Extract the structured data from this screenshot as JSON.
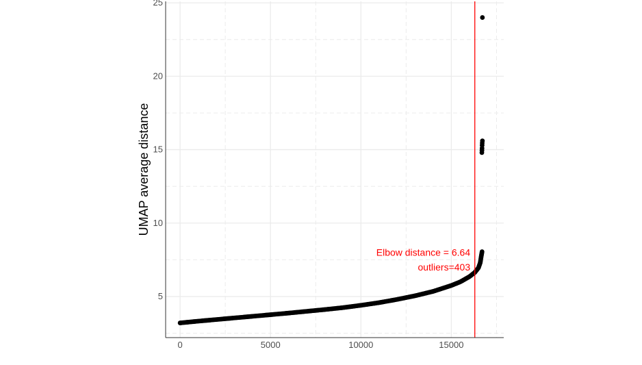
{
  "chart_data": {
    "type": "scatter",
    "title": "",
    "xlabel": "",
    "ylabel": "UMAP average distance",
    "xlim": [
      -800,
      17900
    ],
    "ylim": [
      2.2,
      25.1
    ],
    "x_ticks": [
      0,
      5000,
      10000,
      15000
    ],
    "x_tick_labels": [
      "0",
      "5000",
      "10000",
      "15000"
    ],
    "y_ticks": [
      5,
      10,
      15,
      20,
      25
    ],
    "y_tick_labels": [
      "5",
      "10",
      "15",
      "20",
      "25"
    ],
    "grid": true,
    "legend": "none",
    "colors": {
      "points": "#000000",
      "vline": "#ff0000",
      "annotation": "#ff0000",
      "grid": "#ebebeb",
      "axis": "#333333"
    },
    "series": [
      {
        "curve": [
          [
            0,
            3.2
          ],
          [
            1000,
            3.32
          ],
          [
            2000,
            3.43
          ],
          [
            3000,
            3.54
          ],
          [
            4000,
            3.65
          ],
          [
            5000,
            3.76
          ],
          [
            6000,
            3.87
          ],
          [
            7000,
            3.99
          ],
          [
            8000,
            4.11
          ],
          [
            9000,
            4.24
          ],
          [
            10000,
            4.4
          ],
          [
            11000,
            4.58
          ],
          [
            12000,
            4.8
          ],
          [
            13000,
            5.05
          ],
          [
            14000,
            5.35
          ],
          [
            15000,
            5.75
          ],
          [
            15500,
            6.0
          ],
          [
            16000,
            6.35
          ],
          [
            16300,
            6.64
          ],
          [
            16500,
            6.95
          ],
          [
            16600,
            7.3
          ],
          [
            16650,
            7.7
          ],
          [
            16700,
            8.05
          ]
        ],
        "outlier_points": [
          [
            16720,
            15.6
          ],
          [
            16710,
            15.45
          ],
          [
            16705,
            15.3
          ],
          [
            16700,
            15.1
          ],
          [
            16695,
            14.95
          ],
          [
            16690,
            14.8
          ],
          [
            16720,
            24.0
          ]
        ]
      }
    ],
    "vline": {
      "x": 16300
    },
    "annotations": [
      {
        "text": "Elbow distance = 6.64",
        "x": 16050,
        "y": 8.0
      },
      {
        "text": "outliers=403",
        "x": 16050,
        "y": 7.0
      }
    ]
  }
}
